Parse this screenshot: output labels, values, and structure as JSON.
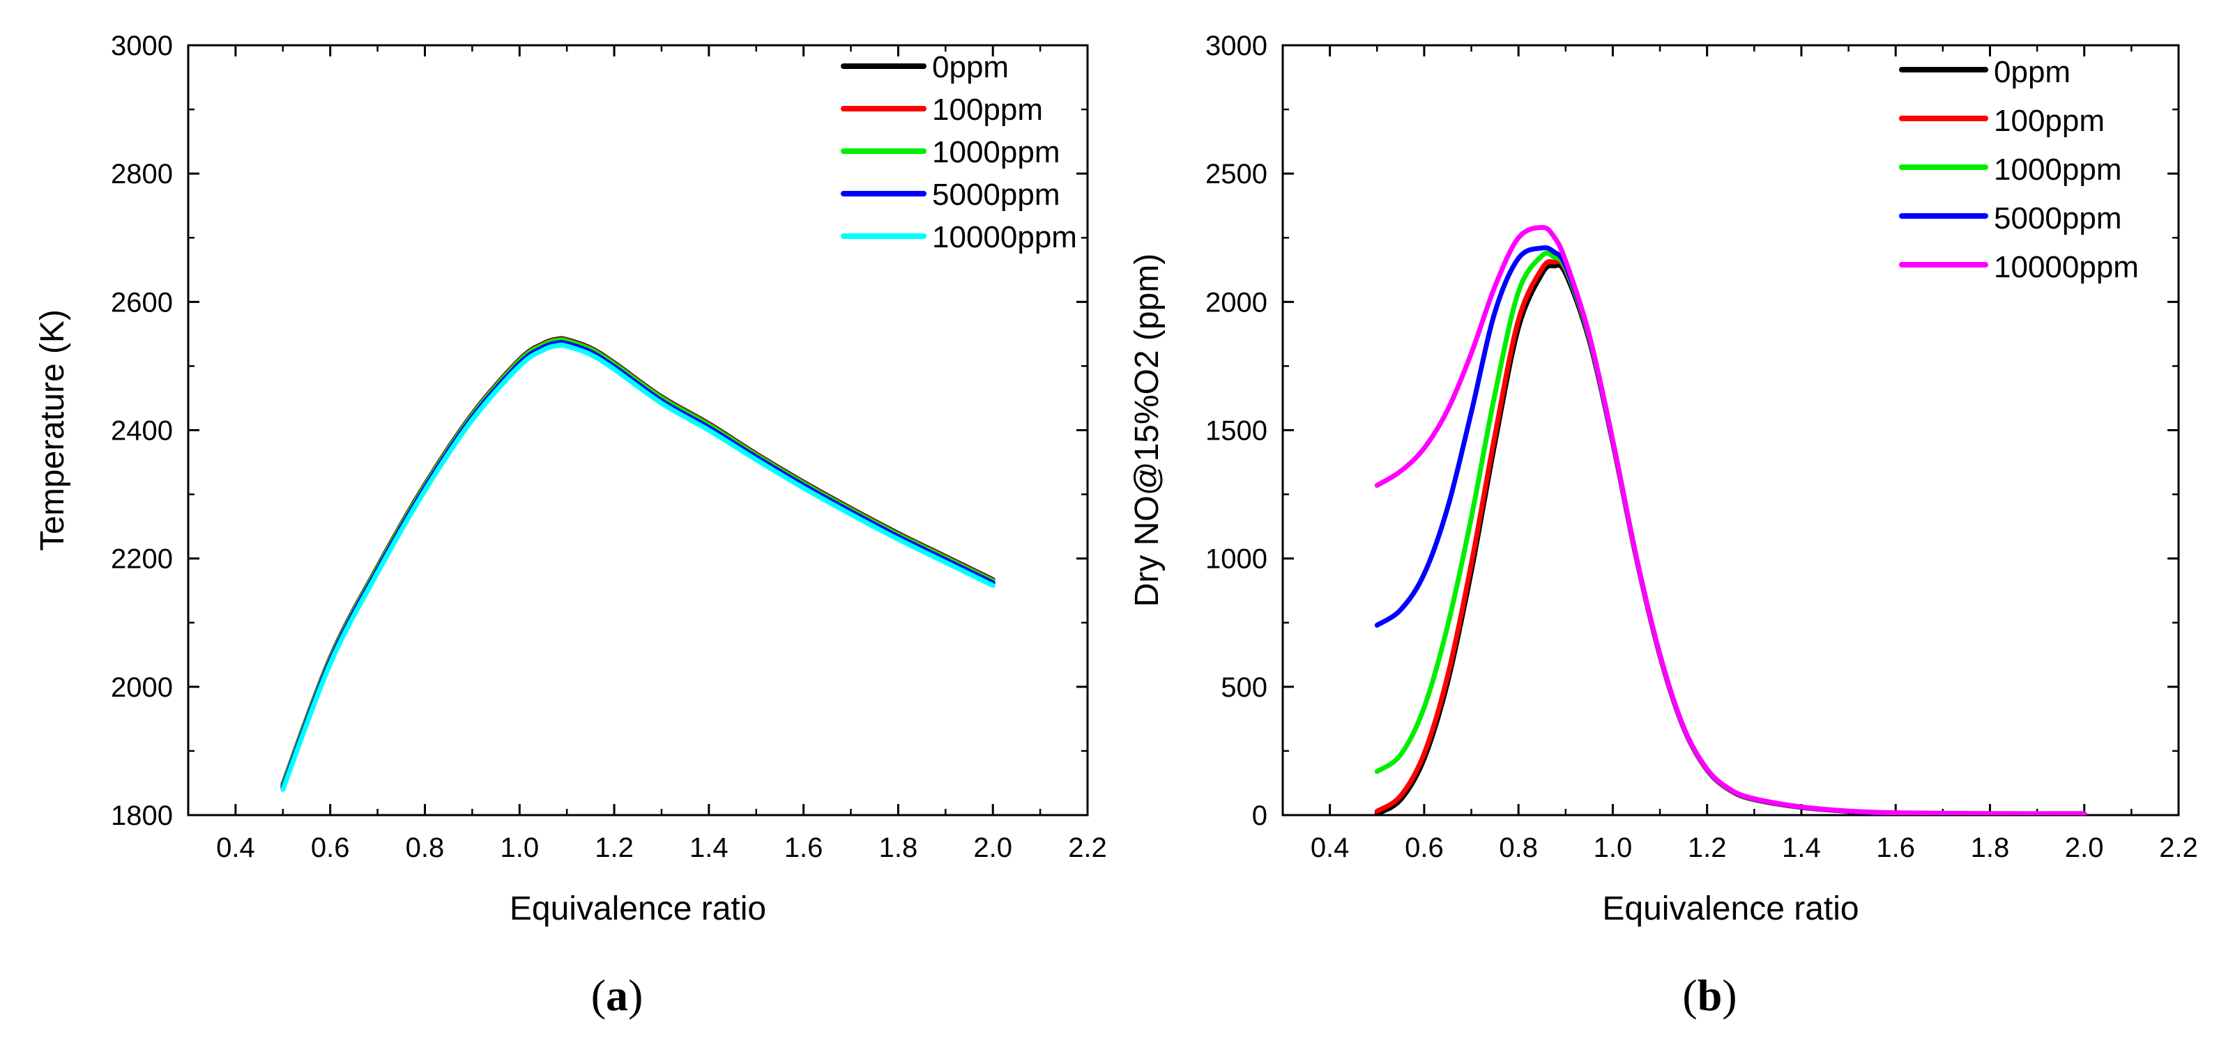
{
  "chart_data": [
    {
      "type": "line",
      "panel_label": "a",
      "xlabel": "Equivalence ratio",
      "ylabel": "Temperature (K)",
      "xlim": [
        0.3,
        2.2
      ],
      "ylim": [
        1800,
        3000
      ],
      "xticks": [
        0.4,
        0.6,
        0.8,
        1.0,
        1.2,
        1.4,
        1.6,
        1.8,
        2.0,
        2.2
      ],
      "xtick_labels": [
        "0.4",
        "0.6",
        "0.8",
        "1.0",
        "1.2",
        "1.4",
        "1.6",
        "1.8",
        "2.0",
        "2.2"
      ],
      "yticks": [
        1800,
        2000,
        2200,
        2400,
        2600,
        2800,
        3000
      ],
      "ytick_labels": [
        "1800",
        "2000",
        "2200",
        "2400",
        "2600",
        "2800",
        "3000"
      ],
      "legend_position": "top-right",
      "x": [
        0.5,
        0.6,
        0.7,
        0.8,
        0.9,
        1.0,
        1.05,
        1.08,
        1.1,
        1.15,
        1.2,
        1.3,
        1.4,
        1.5,
        1.6,
        1.7,
        1.8,
        1.9,
        2.0
      ],
      "series": [
        {
          "name": "0ppm",
          "color": "#000000",
          "values": [
            1848,
            2045,
            2187,
            2315,
            2425,
            2510,
            2535,
            2542,
            2541,
            2528,
            2505,
            2452,
            2410,
            2363,
            2319,
            2278,
            2239,
            2203,
            2167
          ]
        },
        {
          "name": "100ppm",
          "color": "#ff0000",
          "values": [
            1847,
            2044,
            2186,
            2314,
            2424,
            2509,
            2534,
            2541,
            2540,
            2527,
            2504,
            2451,
            2409,
            2362,
            2318,
            2277,
            2238,
            2202,
            2166
          ]
        },
        {
          "name": "1000ppm",
          "color": "#00ee00",
          "values": [
            1846,
            2043,
            2185,
            2313,
            2423,
            2508,
            2533,
            2540,
            2539,
            2526,
            2503,
            2450,
            2408,
            2361,
            2317,
            2276,
            2237,
            2201,
            2165
          ]
        },
        {
          "name": "5000ppm",
          "color": "#0000ff",
          "values": [
            1843,
            2040,
            2182,
            2310,
            2420,
            2504,
            2529,
            2536,
            2535,
            2522,
            2499,
            2446,
            2404,
            2358,
            2314,
            2273,
            2234,
            2198,
            2162
          ]
        },
        {
          "name": "10000ppm",
          "color": "#00ffff",
          "values": [
            1840,
            2036,
            2178,
            2306,
            2416,
            2500,
            2525,
            2532,
            2531,
            2518,
            2495,
            2442,
            2400,
            2354,
            2310,
            2269,
            2230,
            2194,
            2158
          ]
        }
      ]
    },
    {
      "type": "line",
      "panel_label": "b",
      "xlabel": "Equivalence ratio",
      "ylabel": "Dry NO@15%O2 (ppm)",
      "xlim": [
        0.3,
        2.2
      ],
      "ylim": [
        0,
        3000
      ],
      "xticks": [
        0.4,
        0.6,
        0.8,
        1.0,
        1.2,
        1.4,
        1.6,
        1.8,
        2.0,
        2.2
      ],
      "xtick_labels": [
        "0.4",
        "0.6",
        "0.8",
        "1.0",
        "1.2",
        "1.4",
        "1.6",
        "1.8",
        "2.0",
        "2.2"
      ],
      "yticks": [
        0,
        500,
        1000,
        1500,
        2000,
        2500,
        3000
      ],
      "ytick_labels": [
        "0",
        "500",
        "1000",
        "1500",
        "2000",
        "2500",
        "3000"
      ],
      "legend_position": "top-right",
      "x": [
        0.5,
        0.55,
        0.6,
        0.65,
        0.7,
        0.75,
        0.8,
        0.85,
        0.875,
        0.9,
        0.95,
        1.0,
        1.05,
        1.1,
        1.15,
        1.2,
        1.25,
        1.3,
        1.4,
        1.5,
        1.6,
        1.8,
        2.0
      ],
      "series": [
        {
          "name": "0ppm",
          "color": "#000000",
          "values": [
            5,
            60,
            220,
            520,
            950,
            1450,
            1900,
            2110,
            2140,
            2110,
            1850,
            1450,
            1000,
            620,
            340,
            175,
            95,
            60,
            30,
            15,
            8,
            5,
            5
          ]
        },
        {
          "name": "100ppm",
          "color": "#ff0000",
          "values": [
            15,
            75,
            240,
            545,
            980,
            1480,
            1930,
            2130,
            2155,
            2125,
            1860,
            1455,
            1003,
            622,
            341,
            176,
            96,
            61,
            30,
            15,
            8,
            5,
            5
          ]
        },
        {
          "name": "1000ppm",
          "color": "#00ee00",
          "values": [
            170,
            235,
            420,
            740,
            1160,
            1640,
            2040,
            2180,
            2175,
            2130,
            1862,
            1456,
            1004,
            623,
            342,
            177,
            97,
            62,
            31,
            15,
            8,
            5,
            5
          ]
        },
        {
          "name": "5000ppm",
          "color": "#0000ff",
          "values": [
            740,
            800,
            940,
            1200,
            1570,
            1960,
            2170,
            2210,
            2195,
            2140,
            1868,
            1458,
            1005,
            625,
            343,
            178,
            98,
            63,
            31,
            15,
            8,
            5,
            5
          ]
        },
        {
          "name": "10000ppm",
          "color": "#ff00ff",
          "values": [
            1285,
            1340,
            1430,
            1580,
            1800,
            2060,
            2250,
            2290,
            2255,
            2160,
            1872,
            1460,
            1006,
            626,
            344,
            179,
            99,
            64,
            32,
            16,
            9,
            6,
            6
          ]
        }
      ]
    }
  ]
}
